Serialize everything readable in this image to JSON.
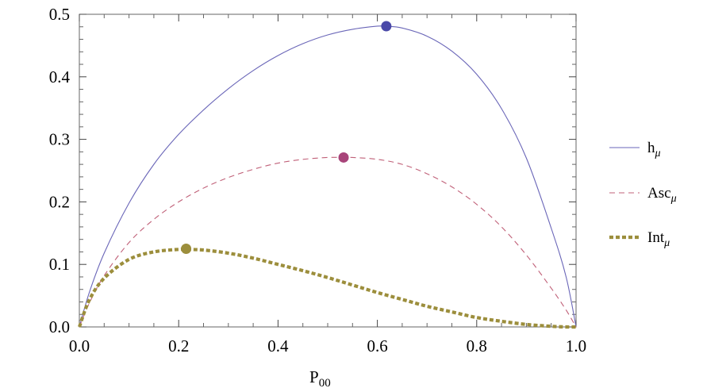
{
  "chart_data": {
    "type": "line",
    "title": "",
    "xlabel_main": "P",
    "xlabel_sub": "00",
    "ylabel": "",
    "xlim": [
      0.0,
      1.0
    ],
    "ylim": [
      0.0,
      0.5
    ],
    "xticks": [
      "0.0",
      "0.2",
      "0.4",
      "0.6",
      "0.8",
      "1.0"
    ],
    "yticks": [
      "0.0",
      "0.1",
      "0.2",
      "0.3",
      "0.4",
      "0.5"
    ],
    "grid": false,
    "legend_position": "right",
    "series": [
      {
        "name_main": "h",
        "name_sub": "μ",
        "color": "#6a66b8",
        "style": "solid",
        "x": [
          0.0,
          0.02,
          0.05,
          0.1,
          0.15,
          0.2,
          0.25,
          0.3,
          0.35,
          0.4,
          0.45,
          0.5,
          0.55,
          0.6,
          0.618,
          0.65,
          0.7,
          0.75,
          0.8,
          0.85,
          0.9,
          0.95,
          0.98,
          1.0
        ],
        "y": [
          0.0,
          0.055,
          0.118,
          0.198,
          0.26,
          0.308,
          0.347,
          0.381,
          0.41,
          0.434,
          0.453,
          0.467,
          0.476,
          0.481,
          0.481,
          0.478,
          0.465,
          0.441,
          0.404,
          0.349,
          0.27,
          0.158,
          0.08,
          0.0
        ],
        "marker": {
          "x": 0.618,
          "y": 0.481,
          "color": "#4a49a8"
        }
      },
      {
        "name_main": "Asc",
        "name_sub": "μ",
        "color": "#c06078",
        "style": "dashed",
        "x": [
          0.0,
          0.02,
          0.05,
          0.1,
          0.15,
          0.2,
          0.25,
          0.3,
          0.35,
          0.4,
          0.45,
          0.5,
          0.53,
          0.55,
          0.6,
          0.65,
          0.7,
          0.75,
          0.8,
          0.85,
          0.9,
          0.95,
          0.98,
          1.0
        ],
        "y": [
          0.0,
          0.038,
          0.082,
          0.135,
          0.172,
          0.2,
          0.222,
          0.239,
          0.252,
          0.262,
          0.268,
          0.271,
          0.271,
          0.271,
          0.268,
          0.26,
          0.245,
          0.224,
          0.196,
          0.16,
          0.115,
          0.062,
          0.027,
          0.0
        ],
        "marker": {
          "x": 0.532,
          "y": 0.271,
          "color": "#a8447a"
        }
      },
      {
        "name_main": "Int",
        "name_sub": "μ",
        "color": "#9c8e3c",
        "style": "dotted-thick",
        "x": [
          0.0,
          0.02,
          0.05,
          0.1,
          0.15,
          0.2,
          0.215,
          0.25,
          0.3,
          0.35,
          0.4,
          0.45,
          0.5,
          0.55,
          0.6,
          0.65,
          0.7,
          0.75,
          0.8,
          0.85,
          0.9,
          0.95,
          0.98,
          1.0
        ],
        "y": [
          0.0,
          0.043,
          0.078,
          0.108,
          0.12,
          0.124,
          0.124,
          0.123,
          0.118,
          0.11,
          0.1,
          0.09,
          0.079,
          0.067,
          0.055,
          0.044,
          0.033,
          0.024,
          0.015,
          0.009,
          0.004,
          0.001,
          0.0,
          0.0
        ],
        "marker": {
          "x": 0.215,
          "y": 0.125,
          "color": "#9c8e3c"
        }
      }
    ]
  }
}
